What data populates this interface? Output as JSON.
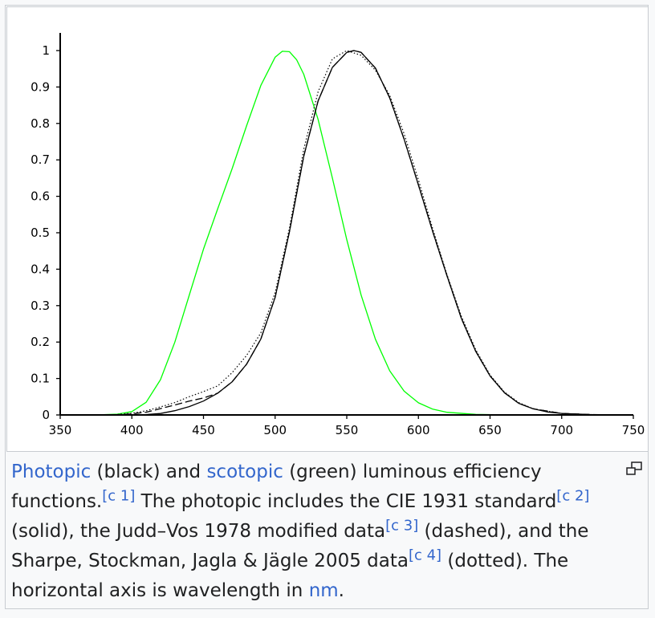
{
  "chart_data": {
    "type": "line",
    "title": "",
    "xlabel": "",
    "ylabel": "",
    "xlim": [
      350,
      750
    ],
    "ylim": [
      0,
      1
    ],
    "x_ticks": [
      350,
      400,
      450,
      500,
      550,
      600,
      650,
      700,
      750
    ],
    "y_ticks": [
      0,
      0.1,
      0.2,
      0.3,
      0.4,
      0.5,
      0.6,
      0.7,
      0.8,
      0.9,
      1
    ],
    "x_tick_labels": [
      "350",
      "400",
      "450",
      "500",
      "550",
      "600",
      "650",
      "700",
      "750"
    ],
    "y_tick_labels": [
      "0",
      "0.1",
      "0.2",
      "0.3",
      "0.4",
      "0.5",
      "0.6",
      "0.7",
      "0.8",
      "0.9",
      "1"
    ],
    "grid": false,
    "legend": "none",
    "series": [
      {
        "style": "solid",
        "color": "#00ff00",
        "x": [
          380,
          390,
          400,
          410,
          420,
          430,
          440,
          450,
          460,
          470,
          480,
          490,
          500,
          505,
          510,
          515,
          520,
          530,
          540,
          550,
          560,
          570,
          580,
          590,
          600,
          610,
          620,
          640,
          660,
          700
        ],
        "y": [
          0.0006,
          0.0022,
          0.0093,
          0.0348,
          0.0966,
          0.1998,
          0.3281,
          0.455,
          0.567,
          0.676,
          0.793,
          0.904,
          0.982,
          0.998,
          0.997,
          0.975,
          0.935,
          0.811,
          0.65,
          0.481,
          0.3288,
          0.2076,
          0.1212,
          0.0655,
          0.03315,
          0.0159,
          0.00737,
          0.001497,
          0.000313,
          0
        ]
      },
      {
        "style": "solid",
        "color": "#000000",
        "x": [
          380,
          400,
          410,
          420,
          430,
          440,
          450,
          460,
          470,
          480,
          490,
          500,
          510,
          520,
          530,
          540,
          550,
          555,
          560,
          570,
          580,
          590,
          600,
          610,
          620,
          630,
          640,
          650,
          660,
          670,
          680,
          690,
          700,
          720,
          750
        ],
        "y": [
          0,
          0.0004,
          0.0012,
          0.004,
          0.0116,
          0.023,
          0.038,
          0.06,
          0.091,
          0.139,
          0.208,
          0.323,
          0.503,
          0.71,
          0.862,
          0.954,
          0.995,
          1.0,
          0.995,
          0.952,
          0.87,
          0.757,
          0.631,
          0.503,
          0.381,
          0.265,
          0.175,
          0.107,
          0.061,
          0.032,
          0.017,
          0.0082,
          0.0041,
          0.00105,
          0.0001
        ]
      },
      {
        "style": "dashed",
        "color": "#000000",
        "x": [
          380,
          390,
          400,
          410,
          420,
          430,
          440,
          450,
          460,
          470,
          480,
          490,
          500,
          510,
          520,
          530,
          540,
          550,
          555,
          560,
          570,
          580,
          590,
          600,
          610,
          620,
          630,
          640,
          650,
          660,
          670,
          680,
          700,
          720,
          750
        ],
        "y": [
          0.0002,
          0.0008,
          0.0028,
          0.0074,
          0.0175,
          0.0273,
          0.0379,
          0.0468,
          0.06,
          0.091,
          0.139,
          0.208,
          0.323,
          0.503,
          0.71,
          0.862,
          0.954,
          0.995,
          1.0,
          0.995,
          0.952,
          0.87,
          0.757,
          0.631,
          0.503,
          0.381,
          0.265,
          0.175,
          0.107,
          0.061,
          0.032,
          0.017,
          0.0041,
          0.00105,
          0.0001
        ]
      },
      {
        "style": "dotted",
        "color": "#000000",
        "x": [
          390,
          400,
          410,
          420,
          430,
          440,
          450,
          460,
          470,
          480,
          490,
          500,
          510,
          520,
          530,
          540,
          550,
          560,
          570,
          580,
          590,
          600,
          610,
          620,
          630,
          640,
          650,
          660,
          670,
          680,
          700,
          720,
          750
        ],
        "y": [
          0.0015,
          0.0047,
          0.0115,
          0.022,
          0.034,
          0.05,
          0.064,
          0.08,
          0.116,
          0.163,
          0.225,
          0.336,
          0.513,
          0.729,
          0.887,
          0.977,
          1.0,
          0.987,
          0.946,
          0.877,
          0.772,
          0.645,
          0.511,
          0.384,
          0.271,
          0.179,
          0.11,
          0.063,
          0.034,
          0.0172,
          0.0041,
          0.001,
          0.0001
        ]
      }
    ]
  },
  "caption": {
    "link_photopic": "Photopic",
    "text_1": " (black) and ",
    "link_scotopic": "scotopic",
    "text_2": " (green) luminous efficiency functions.",
    "ref_c1": "[c 1]",
    "text_3": " The photopic includes the CIE 1931 standard",
    "ref_c2": "[c 2]",
    "text_4": " (solid), the Judd–Vos 1978 modified data",
    "ref_c3": "[c 3]",
    "text_5": " (dashed), and the Sharpe, Stockman, Jagla & Jägle 2005 data",
    "ref_c4": "[c 4]",
    "text_6": " (dotted). The horizontal axis is wavelength in ",
    "link_nm": "nm",
    "text_7": "."
  },
  "icons": {
    "magnify": "magnify-icon"
  }
}
